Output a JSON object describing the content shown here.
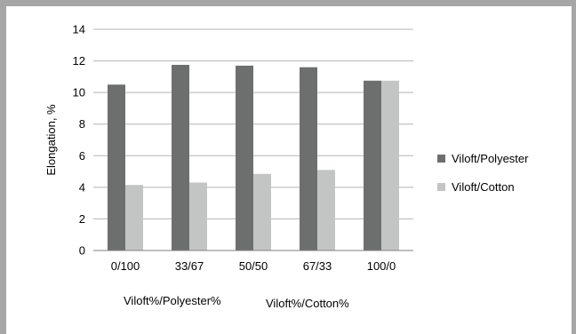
{
  "chart_data": {
    "type": "bar",
    "title": "",
    "xlabel": "",
    "ylabel": "Elongation, %",
    "categories": [
      "0/100",
      "33/67",
      "50/50",
      "67/33",
      "100/0"
    ],
    "series": [
      {
        "name": "Viloft/Polyester",
        "color": "#6d6f6f",
        "values": [
          10.5,
          11.75,
          11.7,
          11.6,
          10.75
        ]
      },
      {
        "name": "Viloft/Cotton",
        "color": "#c3c4c4",
        "values": [
          4.15,
          4.3,
          4.85,
          5.1,
          10.75
        ]
      }
    ],
    "ylim": [
      0,
      14
    ],
    "yticks": [
      0,
      2,
      4,
      6,
      8,
      10,
      12,
      14
    ],
    "grid": true,
    "legend_position": "right",
    "x_annotations": [
      "Viloft%/Polyester%",
      "Viloft%/Cotton%"
    ]
  }
}
